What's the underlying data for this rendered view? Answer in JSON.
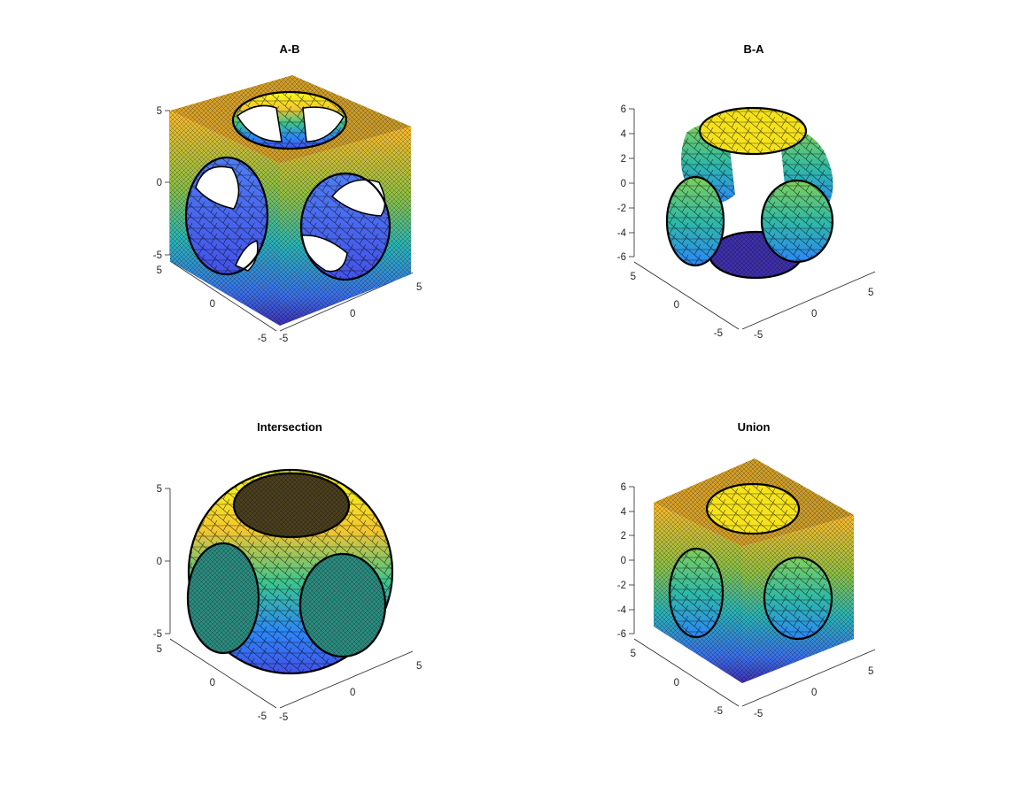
{
  "figure": {
    "title": "",
    "colormap": [
      "#3e26a8",
      "#4352e8",
      "#2c86f8",
      "#1bb1d4",
      "#3cc58c",
      "#a6bf3c",
      "#fbb82d",
      "#f9fb15"
    ]
  },
  "chart_data": [
    {
      "type": "surface3d",
      "title": "A-B",
      "shape": "cube with spherical cavities cut through each face",
      "zlim": [
        -5,
        5
      ],
      "xlim": [
        -5,
        5
      ],
      "ylim": [
        -5,
        5
      ],
      "z_ticks": [
        "5",
        "0",
        "-5"
      ],
      "y_ticks": [
        "5",
        "0",
        "-5"
      ],
      "x_ticks": [
        "-5",
        "0",
        "5"
      ],
      "grid": false
    },
    {
      "type": "surface3d",
      "title": "B-A",
      "shape": "sphere portions protruding through cube faces",
      "zlim": [
        -6,
        6
      ],
      "xlim": [
        -5,
        5
      ],
      "ylim": [
        -5,
        5
      ],
      "z_ticks": [
        "6",
        "4",
        "2",
        "0",
        "-2",
        "-4",
        "-6"
      ],
      "y_ticks": [
        "5",
        "0",
        "-5"
      ],
      "x_ticks": [
        "-5",
        "0",
        "5"
      ],
      "grid": false
    },
    {
      "type": "surface3d",
      "title": "Intersection",
      "shape": "sphere clipped by cube faces",
      "zlim": [
        -5,
        5
      ],
      "xlim": [
        -5,
        5
      ],
      "ylim": [
        -5,
        5
      ],
      "z_ticks": [
        "5",
        "0",
        "-5"
      ],
      "y_ticks": [
        "5",
        "0",
        "-5"
      ],
      "x_ticks": [
        "-5",
        "0",
        "5"
      ],
      "grid": false
    },
    {
      "type": "surface3d",
      "title": "Union",
      "shape": "cube with sphere caps protruding from faces",
      "zlim": [
        -6,
        6
      ],
      "xlim": [
        -5,
        5
      ],
      "ylim": [
        -5,
        5
      ],
      "z_ticks": [
        "6",
        "4",
        "2",
        "0",
        "-2",
        "-4",
        "-6"
      ],
      "y_ticks": [
        "5",
        "0",
        "-5"
      ],
      "x_ticks": [
        "-5",
        "0",
        "5"
      ],
      "grid": false
    }
  ]
}
